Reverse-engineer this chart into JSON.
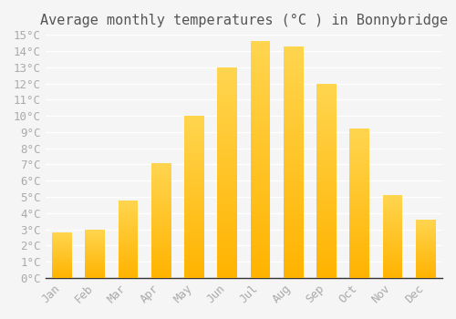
{
  "title": "Average monthly temperatures (°C ) in Bonnybridge",
  "months": [
    "Jan",
    "Feb",
    "Mar",
    "Apr",
    "May",
    "Jun",
    "Jul",
    "Aug",
    "Sep",
    "Oct",
    "Nov",
    "Dec"
  ],
  "values": [
    2.8,
    3.0,
    4.8,
    7.1,
    10.0,
    13.0,
    14.6,
    14.3,
    12.0,
    9.2,
    5.1,
    3.6
  ],
  "ylim": [
    0,
    15
  ],
  "yticks": [
    0,
    1,
    2,
    3,
    4,
    5,
    6,
    7,
    8,
    9,
    10,
    11,
    12,
    13,
    14,
    15
  ],
  "bar_color_bottom": "#FFB300",
  "bar_color_top": "#FFD54F",
  "background_color": "#F5F5F5",
  "grid_color": "#FFFFFF",
  "title_fontsize": 11,
  "tick_fontsize": 9,
  "tick_color": "#AAAAAA",
  "font_family": "monospace"
}
